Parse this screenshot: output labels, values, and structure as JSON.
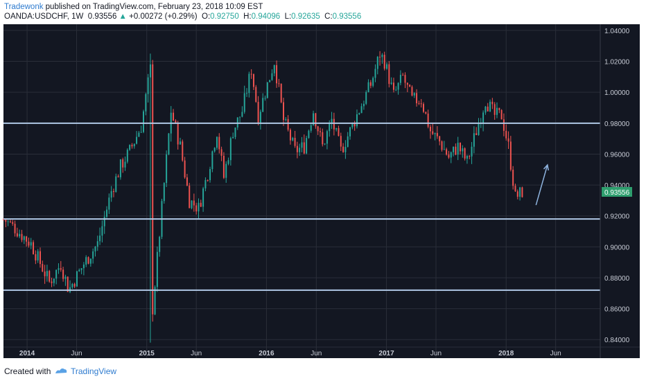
{
  "header": {
    "author": "Tradewonk",
    "published_text": " published on TradingView.com, February 23, 2018 10:09 EST",
    "symbol": "OANDA:USDCHF, 1W",
    "price": "0.93556",
    "change": "+0.00272 (+0.29%)",
    "o_label": "O:",
    "o_value": "0.92750",
    "h_label": "H:",
    "h_value": "0.94096",
    "l_label": "L:",
    "l_value": "0.92635",
    "c_label": "C:",
    "c_value": "0.93556"
  },
  "footer": {
    "created_with": "Created with",
    "brand": "TradingView"
  },
  "colors": {
    "background": "#131722",
    "up": "#26a69a",
    "down": "#ef5350",
    "hline": "#b0c8e6",
    "arrow": "#8fb4e0",
    "price_tag": "#2e9e6e"
  },
  "chart_data": {
    "type": "candlestick",
    "symbol": "OANDA:USDCHF",
    "interval": "1W",
    "ylim": [
      0.828,
      1.044
    ],
    "y_ticks": [
      "1.04000",
      "1.02000",
      "1.00000",
      "0.98000",
      "0.96000",
      "0.94000",
      "0.92000",
      "0.90000",
      "0.88000",
      "0.86000",
      "0.84000"
    ],
    "y_tick_values": [
      1.04,
      1.02,
      1.0,
      0.98,
      0.96,
      0.94,
      0.92,
      0.9,
      0.88,
      0.86,
      0.84
    ],
    "x_ticks": [
      {
        "label": "2014",
        "date": "2014-01-01",
        "bold": true
      },
      {
        "label": "Jun",
        "date": "2014-06-01",
        "bold": false
      },
      {
        "label": "2015",
        "date": "2015-01-01",
        "bold": true
      },
      {
        "label": "Jun",
        "date": "2015-06-01",
        "bold": false
      },
      {
        "label": "2016",
        "date": "2016-01-01",
        "bold": true
      },
      {
        "label": "Jun",
        "date": "2016-06-01",
        "bold": false
      },
      {
        "label": "2017",
        "date": "2017-01-01",
        "bold": true
      },
      {
        "label": "Jun",
        "date": "2017-06-01",
        "bold": false
      },
      {
        "label": "2018",
        "date": "2018-01-01",
        "bold": true
      },
      {
        "label": "Jun",
        "date": "2018-06-01",
        "bold": false
      }
    ],
    "x_range": [
      "2013-10-21",
      "2018-10-15"
    ],
    "horizontal_levels": [
      0.98,
      0.918,
      0.872
    ],
    "last_price": 0.93556,
    "last_price_label": "0.93556",
    "trend_arrow": {
      "from": {
        "date": "2018-04-02",
        "price": 0.927
      },
      "to": {
        "date": "2018-05-07",
        "price": 0.953
      }
    },
    "keypoints": [
      {
        "date": "2013-10-21",
        "price": 0.918
      },
      {
        "date": "2013-11-25",
        "price": 0.912
      },
      {
        "date": "2014-01-13",
        "price": 0.902
      },
      {
        "date": "2014-03-10",
        "price": 0.877
      },
      {
        "date": "2014-04-14",
        "price": 0.889
      },
      {
        "date": "2014-05-08",
        "price": 0.872
      },
      {
        "date": "2014-06-23",
        "price": 0.889
      },
      {
        "date": "2014-08-04",
        "price": 0.902
      },
      {
        "date": "2014-09-15",
        "price": 0.936
      },
      {
        "date": "2014-10-13",
        "price": 0.952
      },
      {
        "date": "2014-11-10",
        "price": 0.962
      },
      {
        "date": "2014-12-15",
        "price": 0.978
      },
      {
        "date": "2015-01-12",
        "price": 1.015
      },
      {
        "date": "2015-01-19",
        "price": 0.86
      },
      {
        "date": "2015-02-16",
        "price": 0.925
      },
      {
        "date": "2015-03-16",
        "price": 0.988
      },
      {
        "date": "2015-04-13",
        "price": 0.965
      },
      {
        "date": "2015-05-11",
        "price": 0.93
      },
      {
        "date": "2015-06-08",
        "price": 0.925
      },
      {
        "date": "2015-07-06",
        "price": 0.948
      },
      {
        "date": "2015-08-03",
        "price": 0.975
      },
      {
        "date": "2015-08-24",
        "price": 0.945
      },
      {
        "date": "2015-09-21",
        "price": 0.975
      },
      {
        "date": "2015-10-19",
        "price": 0.988
      },
      {
        "date": "2015-11-16",
        "price": 1.015
      },
      {
        "date": "2015-12-07",
        "price": 0.985
      },
      {
        "date": "2015-12-28",
        "price": 1.0
      },
      {
        "date": "2016-01-25",
        "price": 1.02
      },
      {
        "date": "2016-02-22",
        "price": 0.982
      },
      {
        "date": "2016-03-28",
        "price": 0.962
      },
      {
        "date": "2016-04-25",
        "price": 0.965
      },
      {
        "date": "2016-05-23",
        "price": 0.988
      },
      {
        "date": "2016-06-20",
        "price": 0.965
      },
      {
        "date": "2016-07-18",
        "price": 0.982
      },
      {
        "date": "2016-08-15",
        "price": 0.962
      },
      {
        "date": "2016-09-12",
        "price": 0.975
      },
      {
        "date": "2016-10-17",
        "price": 0.992
      },
      {
        "date": "2016-11-14",
        "price": 1.005
      },
      {
        "date": "2016-12-12",
        "price": 1.025
      },
      {
        "date": "2016-12-26",
        "price": 1.02
      },
      {
        "date": "2017-01-23",
        "price": 0.998
      },
      {
        "date": "2017-02-20",
        "price": 1.01
      },
      {
        "date": "2017-03-20",
        "price": 0.995
      },
      {
        "date": "2017-04-17",
        "price": 0.995
      },
      {
        "date": "2017-05-15",
        "price": 0.975
      },
      {
        "date": "2017-06-12",
        "price": 0.968
      },
      {
        "date": "2017-07-10",
        "price": 0.958
      },
      {
        "date": "2017-08-07",
        "price": 0.965
      },
      {
        "date": "2017-09-04",
        "price": 0.955
      },
      {
        "date": "2017-10-02",
        "price": 0.975
      },
      {
        "date": "2017-10-30",
        "price": 0.995
      },
      {
        "date": "2017-11-27",
        "price": 0.985
      },
      {
        "date": "2017-12-18",
        "price": 0.985
      },
      {
        "date": "2018-01-08",
        "price": 0.965
      },
      {
        "date": "2018-01-29",
        "price": 0.932
      },
      {
        "date": "2018-02-19",
        "price": 0.9356
      }
    ]
  }
}
